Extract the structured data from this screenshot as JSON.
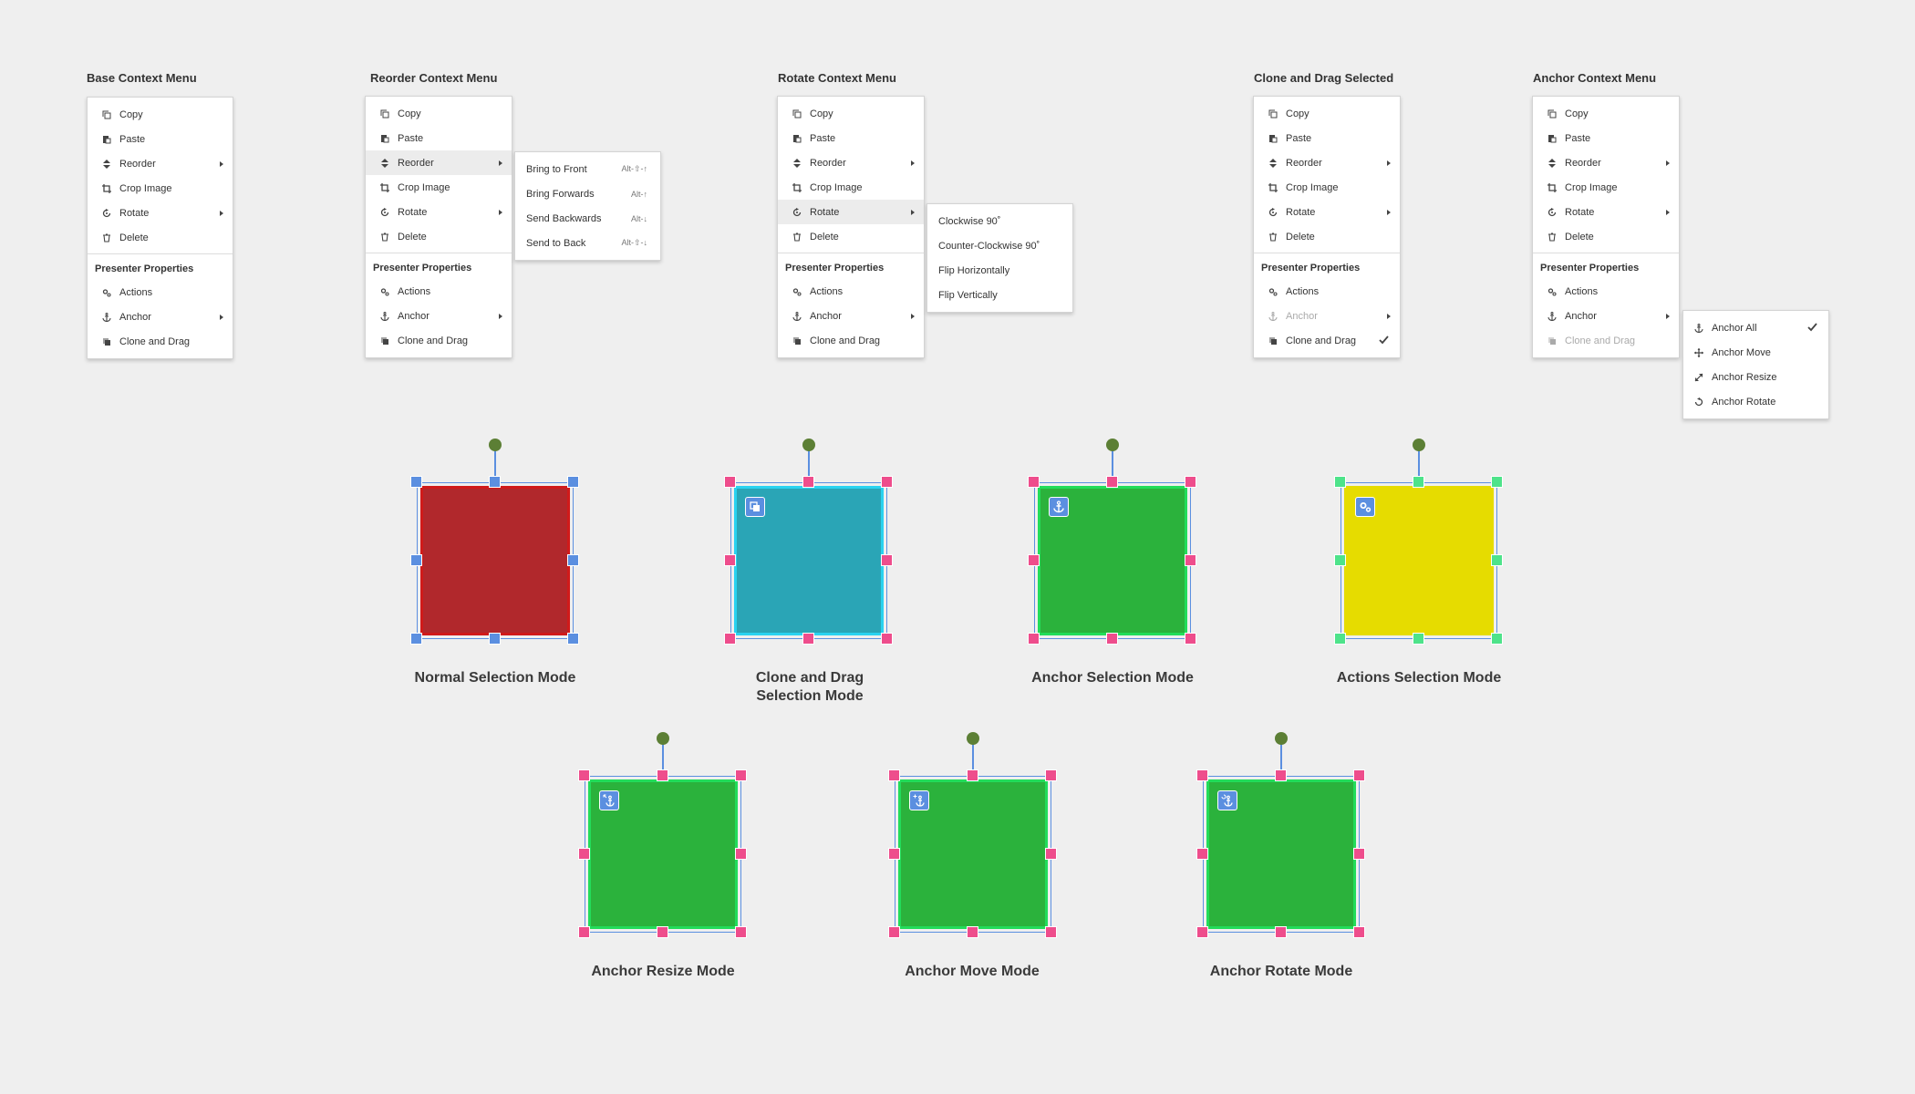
{
  "menus": {
    "base": {
      "title": "Base Context Menu",
      "items": [
        "Copy",
        "Paste",
        "Reorder",
        "Crop Image",
        "Rotate",
        "Delete"
      ],
      "section": "Presenter Properties",
      "props": [
        "Actions",
        "Anchor",
        "Clone and Drag"
      ]
    },
    "reorder": {
      "title": "Reorder Context Menu",
      "items": [
        "Copy",
        "Paste",
        "Reorder",
        "Crop Image",
        "Rotate",
        "Delete"
      ],
      "section": "Presenter Properties",
      "props": [
        "Actions",
        "Anchor",
        "Clone and Drag"
      ],
      "submenu": [
        {
          "label": "Bring to Front",
          "shortcut": "Alt-⇧-↑"
        },
        {
          "label": "Bring Forwards",
          "shortcut": "Alt-↑"
        },
        {
          "label": "Send Backwards",
          "shortcut": "Alt-↓"
        },
        {
          "label": "Send to Back",
          "shortcut": "Alt-⇧-↓"
        }
      ]
    },
    "rotate": {
      "title": "Rotate Context Menu",
      "items": [
        "Copy",
        "Paste",
        "Reorder",
        "Crop Image",
        "Rotate",
        "Delete"
      ],
      "section": "Presenter Properties",
      "props": [
        "Actions",
        "Anchor",
        "Clone and Drag"
      ],
      "submenu": [
        "Clockwise 90˚",
        "Counter-Clockwise 90˚",
        "Flip Horizontally",
        "Flip Vertically"
      ]
    },
    "clone": {
      "title": "Clone and Drag Selected",
      "items": [
        "Copy",
        "Paste",
        "Reorder",
        "Crop Image",
        "Rotate",
        "Delete"
      ],
      "section": "Presenter Properties",
      "props": [
        "Actions",
        "Anchor",
        "Clone and Drag"
      ]
    },
    "anchor": {
      "title": "Anchor Context Menu",
      "items": [
        "Copy",
        "Paste",
        "Reorder",
        "Crop Image",
        "Rotate",
        "Delete"
      ],
      "section": "Presenter Properties",
      "props": [
        "Actions",
        "Anchor",
        "Clone and Drag"
      ],
      "submenu": [
        "Anchor All",
        "Anchor Move",
        "Anchor Resize",
        "Anchor Rotate"
      ]
    }
  },
  "modes": {
    "normal": "Normal Selection Mode",
    "clone_l1": "Clone and Drag",
    "clone_l2": "Selection Mode",
    "anchor": "Anchor Selection Mode",
    "actions": "Actions Selection Mode",
    "resize": "Anchor Resize Mode",
    "move": "Anchor Move Mode",
    "rotate": "Anchor Rotate Mode"
  },
  "colors": {
    "red": "#b1282c",
    "red_border": "#d01a1a",
    "teal": "#2aa5b6",
    "teal_border": "#2ad2f0",
    "green": "#2bb23c",
    "green_border": "#22dc5a",
    "yellow": "#e6dc00",
    "yellow_border": "#e6dc00",
    "handle_blue": "#5b8fe0",
    "handle_pink": "#ee4d8c",
    "handle_green": "#4ee38a",
    "knob": "#5c7f35"
  }
}
